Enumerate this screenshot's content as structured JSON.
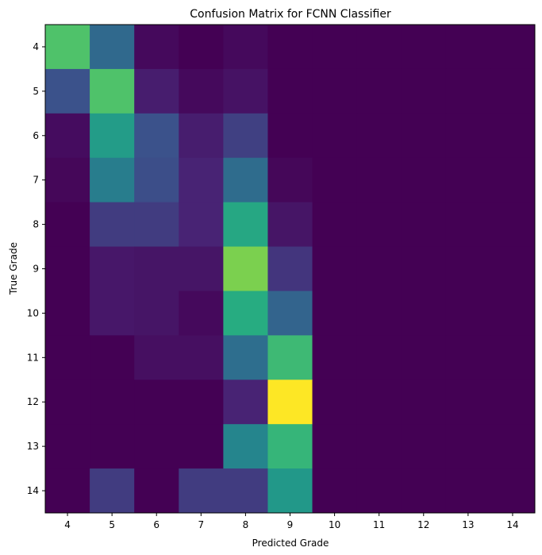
{
  "chart_data": {
    "type": "heatmap",
    "title": "Confusion Matrix for FCNN Classifier",
    "xlabel": "Predicted Grade",
    "ylabel": "True Grade",
    "x_categories": [
      "4",
      "5",
      "6",
      "7",
      "8",
      "9",
      "10",
      "11",
      "12",
      "13",
      "14"
    ],
    "y_categories": [
      "4",
      "5",
      "6",
      "7",
      "8",
      "9",
      "10",
      "11",
      "12",
      "13",
      "14"
    ],
    "colormap": "viridis",
    "value_range": [
      0,
      1
    ],
    "grid": false,
    "values": [
      [
        0.72,
        0.34,
        0.03,
        0.0,
        0.03,
        0.0,
        0.0,
        0.0,
        0.0,
        0.0,
        0.0
      ],
      [
        0.25,
        0.72,
        0.1,
        0.03,
        0.06,
        0.0,
        0.0,
        0.0,
        0.0,
        0.0,
        0.0
      ],
      [
        0.04,
        0.55,
        0.25,
        0.1,
        0.2,
        0.0,
        0.0,
        0.0,
        0.0,
        0.0,
        0.0
      ],
      [
        0.02,
        0.42,
        0.24,
        0.12,
        0.35,
        0.02,
        0.0,
        0.0,
        0.0,
        0.0,
        0.0
      ],
      [
        0.0,
        0.19,
        0.19,
        0.12,
        0.6,
        0.07,
        0.0,
        0.0,
        0.0,
        0.0,
        0.0
      ],
      [
        0.0,
        0.08,
        0.07,
        0.07,
        0.8,
        0.17,
        0.0,
        0.0,
        0.0,
        0.0,
        0.0
      ],
      [
        0.0,
        0.08,
        0.07,
        0.03,
        0.62,
        0.32,
        0.0,
        0.0,
        0.0,
        0.0,
        0.0
      ],
      [
        0.0,
        0.0,
        0.05,
        0.05,
        0.36,
        0.68,
        0.0,
        0.0,
        0.0,
        0.0,
        0.0
      ],
      [
        0.0,
        0.0,
        0.0,
        0.0,
        0.12,
        1.0,
        0.0,
        0.0,
        0.0,
        0.0,
        0.0
      ],
      [
        0.0,
        0.0,
        0.0,
        0.0,
        0.45,
        0.66,
        0.0,
        0.0,
        0.0,
        0.0,
        0.0
      ],
      [
        0.0,
        0.19,
        0.0,
        0.19,
        0.19,
        0.53,
        0.0,
        0.0,
        0.0,
        0.0,
        0.0
      ]
    ]
  }
}
